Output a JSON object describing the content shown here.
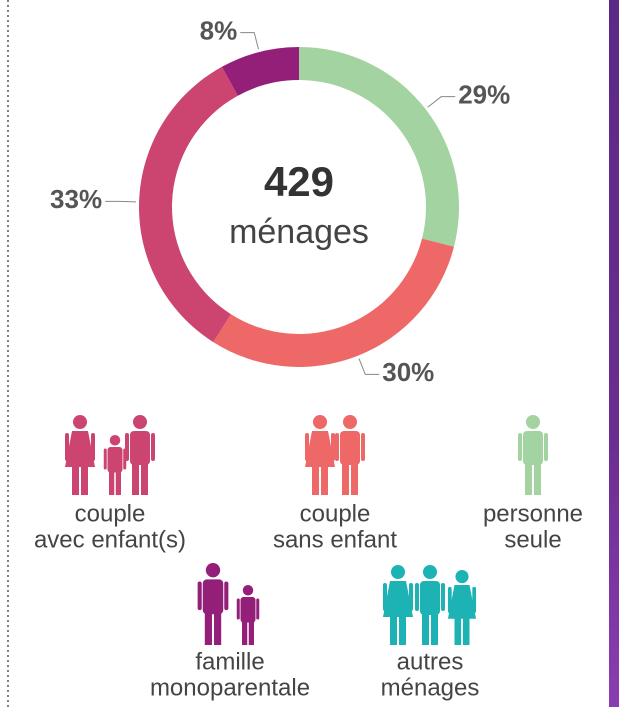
{
  "chart_data": {
    "type": "donut",
    "center_value": "429",
    "center_label": "ménages",
    "categories": [
      "personne seule",
      "couple sans enfant",
      "couple avec enfant(s)",
      "famille monoparentale"
    ],
    "values": [
      29,
      30,
      33,
      8
    ],
    "value_labels": [
      "29%",
      "30%",
      "33%",
      "8%"
    ],
    "colors": [
      "#a2d3a0",
      "#ee6868",
      "#cc4570",
      "#941f79"
    ],
    "legend": [
      {
        "label": [
          "couple",
          "avec enfant(s)"
        ],
        "color": "#cc4570"
      },
      {
        "label": [
          "couple",
          "sans enfant"
        ],
        "color": "#ee6868"
      },
      {
        "label": [
          "personne",
          "seule"
        ],
        "color": "#a2d3a0"
      },
      {
        "label": [
          "famille",
          "monoparentale"
        ],
        "color": "#941f79"
      },
      {
        "label": [
          "autres",
          "ménages"
        ],
        "color": "#1db3b5"
      }
    ]
  }
}
